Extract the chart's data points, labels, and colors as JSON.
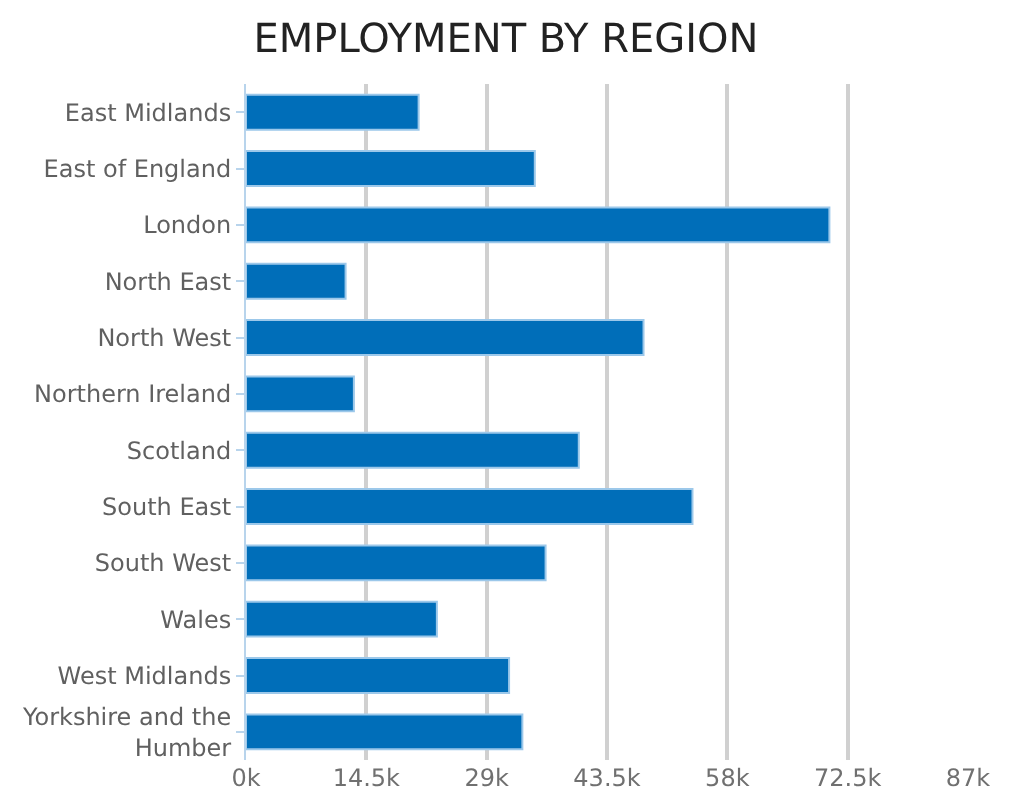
{
  "chart_data": {
    "type": "bar",
    "orientation": "horizontal",
    "title": "EMPLOYMENT BY REGION",
    "categories": [
      "East Midlands",
      "East of England",
      "London",
      "North East",
      "North West",
      "Northern Ireland",
      "Scotland",
      "South East",
      "South West",
      "Wales",
      "West Midlands",
      "Yorkshire and the Humber"
    ],
    "values": [
      20800,
      34800,
      70300,
      12000,
      47900,
      13000,
      40100,
      53800,
      36100,
      23000,
      31700,
      33300
    ],
    "color": "#006eb9",
    "xlim": [
      0,
      87000
    ],
    "xticks": [
      {
        "value": 0,
        "label": "0k"
      },
      {
        "value": 14500,
        "label": "14.5k"
      },
      {
        "value": 29000,
        "label": "29k"
      },
      {
        "value": 43500,
        "label": "43.5k"
      },
      {
        "value": 58000,
        "label": "58k"
      },
      {
        "value": 72500,
        "label": "72.5k"
      },
      {
        "value": 87000,
        "label": "87k"
      }
    ],
    "grid": "x"
  }
}
